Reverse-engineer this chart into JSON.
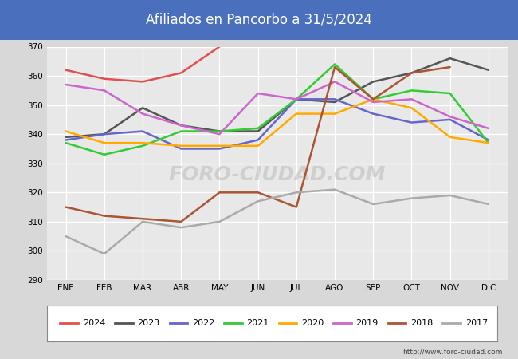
{
  "title": "Afiliados en Pancorbo a 31/5/2024",
  "title_bg_color": "#4a6fbd",
  "title_text_color": "white",
  "ylim": [
    290,
    370
  ],
  "yticks": [
    290,
    300,
    310,
    320,
    330,
    340,
    350,
    360,
    370
  ],
  "months": [
    "ENE",
    "FEB",
    "MAR",
    "ABR",
    "MAY",
    "JUN",
    "JUL",
    "AGO",
    "SEP",
    "OCT",
    "NOV",
    "DIC"
  ],
  "watermark": "FORO-CIUDAD.COM",
  "url": "http://www.foro-ciudad.com",
  "series": {
    "2024": {
      "color": "#e05050",
      "data": [
        362,
        359,
        358,
        361,
        370,
        null,
        null,
        null,
        null,
        null,
        null,
        null
      ]
    },
    "2023": {
      "color": "#555555",
      "data": [
        339,
        340,
        349,
        343,
        341,
        341,
        352,
        351,
        358,
        361,
        366,
        362
      ]
    },
    "2022": {
      "color": "#6666cc",
      "data": [
        338,
        340,
        341,
        335,
        335,
        338,
        352,
        352,
        347,
        344,
        345,
        338
      ]
    },
    "2021": {
      "color": "#33cc33",
      "data": [
        337,
        333,
        336,
        341,
        341,
        342,
        352,
        364,
        352,
        355,
        354,
        337
      ]
    },
    "2020": {
      "color": "#ffaa00",
      "data": [
        341,
        337,
        337,
        336,
        336,
        336,
        347,
        347,
        352,
        349,
        339,
        337
      ]
    },
    "2019": {
      "color": "#cc66cc",
      "data": [
        357,
        355,
        347,
        343,
        340,
        354,
        352,
        358,
        351,
        352,
        346,
        342
      ]
    },
    "2018": {
      "color": "#aa5533",
      "data": [
        315,
        312,
        311,
        310,
        320,
        320,
        315,
        363,
        352,
        361,
        363,
        null
      ]
    },
    "2017": {
      "color": "#aaaaaa",
      "data": [
        305,
        299,
        310,
        308,
        310,
        317,
        320,
        321,
        316,
        318,
        319,
        316
      ]
    }
  },
  "legend_order": [
    "2024",
    "2023",
    "2022",
    "2021",
    "2020",
    "2019",
    "2018",
    "2017"
  ],
  "bg_color": "#d8d8d8",
  "plot_bg_color": "#e8e8e8",
  "grid_color": "white"
}
